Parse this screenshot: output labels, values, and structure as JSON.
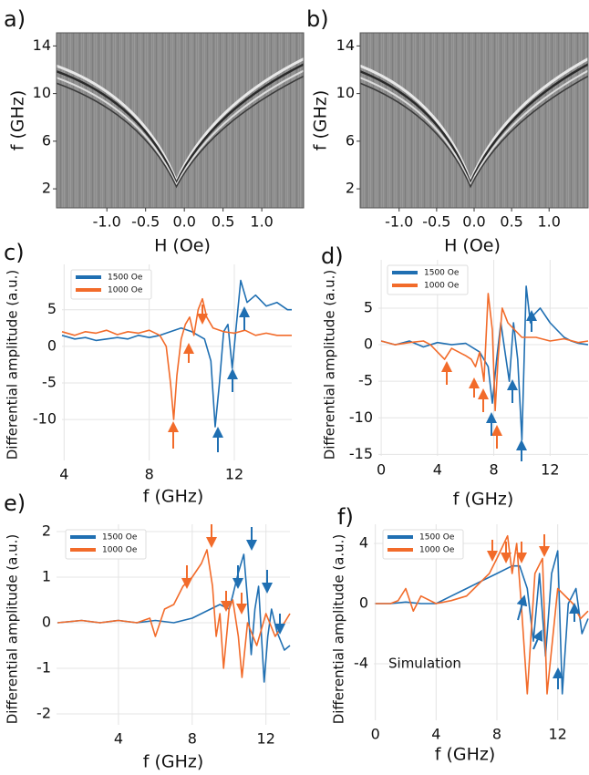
{
  "chart_data": [
    {
      "type": "image",
      "label": "a)",
      "xlabel": "H (Oe)",
      "ylabel": "f (GHz)",
      "xlim": [
        -1.65,
        1.54
      ],
      "ylim": [
        0.4,
        15.1
      ],
      "xticks": [
        {
          "value": -1,
          "label": "-1.0"
        },
        -0.5,
        {
          "value": 0,
          "label": "0.0"
        },
        0.5,
        {
          "value": 1,
          "label": "1.0"
        }
      ],
      "yticks": [
        2,
        6,
        10,
        14
      ]
    },
    {
      "type": "image",
      "label": "b)",
      "xlabel": "H (Oe)",
      "ylabel": "f (GHz)",
      "xlim": [
        -1.52,
        1.52
      ],
      "ylim": [
        0.4,
        15.1
      ],
      "xticks": [
        {
          "value": -1,
          "label": "-1.0"
        },
        -0.5,
        {
          "value": 0,
          "label": "0.0"
        },
        0.5,
        {
          "value": 1,
          "label": "1.0"
        }
      ],
      "yticks": [
        2,
        6,
        10,
        14
      ]
    },
    {
      "type": "line",
      "label": "c)",
      "xlabel": "f (GHz)",
      "ylabel": "Differential amplitude (a.u.)",
      "xlim": [
        3.9,
        14.7
      ],
      "ylim": [
        -15.6,
        11.2
      ],
      "xticks": [
        4,
        8,
        12
      ],
      "yticks": [
        5,
        0,
        -5,
        -10
      ],
      "grid": true,
      "legend": "upper-left",
      "series": [
        {
          "name": "1500 Oe",
          "color": "#1f6fb2",
          "x": [
            3.9,
            4.5,
            5,
            5.5,
            6,
            6.5,
            7,
            7.5,
            8,
            8.5,
            9,
            9.5,
            10,
            10.3,
            10.6,
            10.9,
            11.1,
            11.3,
            11.5,
            11.7,
            11.9,
            12.1,
            12.3,
            12.6,
            13,
            13.5,
            14,
            14.5,
            14.7
          ],
          "values": [
            1.5,
            1,
            1.2,
            0.8,
            1,
            1.2,
            1,
            1.5,
            1.2,
            1.5,
            2,
            2.5,
            2,
            1.5,
            1,
            -2,
            -11,
            -5,
            2,
            3,
            -3,
            3,
            9,
            6,
            7,
            5.5,
            6,
            5,
            5
          ]
        },
        {
          "name": "1000 Oe",
          "color": "#f26b2a",
          "x": [
            3.9,
            4.5,
            5,
            5.5,
            6,
            6.5,
            7,
            7.5,
            8,
            8.5,
            8.8,
            9,
            9.15,
            9.3,
            9.5,
            9.7,
            9.9,
            10.1,
            10.3,
            10.5,
            10.7,
            11,
            11.5,
            12,
            12.5,
            13,
            13.5,
            14,
            14.7
          ],
          "values": [
            2,
            1.5,
            2,
            1.8,
            2.2,
            1.6,
            2,
            1.8,
            2.2,
            1.5,
            0,
            -5,
            -10,
            -4,
            1,
            3,
            4,
            1.5,
            5,
            6.5,
            4,
            2.5,
            2,
            1.8,
            2.2,
            1.5,
            1.8,
            1.5,
            1.5
          ]
        }
      ]
    },
    {
      "type": "line",
      "label": "d)",
      "xlabel": "f (GHz)",
      "ylabel": "Differential amplitude (a.u.)",
      "xlim": [
        -0.2,
        14.7
      ],
      "ylim": [
        -15.2,
        11.6
      ],
      "xticks": [
        0,
        4,
        8,
        12
      ],
      "yticks": [
        5,
        0,
        -5,
        -10,
        -15
      ],
      "grid": true,
      "legend": "upper-left",
      "series": [
        {
          "name": "1500 Oe",
          "color": "#1f6fb2",
          "x": [
            0,
            1,
            2,
            3,
            4,
            5,
            6,
            7,
            7.6,
            7.9,
            8.2,
            8.5,
            8.8,
            9.1,
            9.4,
            9.7,
            10,
            10.3,
            10.6,
            10.8,
            11.3,
            12,
            12.5,
            13,
            13.5,
            14,
            14.7
          ],
          "values": [
            0.5,
            0,
            0.5,
            -0.3,
            0.3,
            0,
            0.2,
            -1,
            -3,
            -8,
            -2,
            3,
            -1,
            -5,
            3,
            -2,
            -13,
            8,
            3,
            4,
            5,
            3,
            2,
            1,
            0.5,
            0.2,
            0
          ]
        },
        {
          "name": "1000 Oe",
          "color": "#f26b2a",
          "x": [
            0,
            1,
            2,
            3,
            3.5,
            4,
            4.5,
            5,
            5.5,
            6,
            6.4,
            6.7,
            7,
            7.3,
            7.6,
            7.9,
            8.1,
            8.3,
            8.6,
            9,
            9.5,
            10,
            11,
            12,
            13,
            14,
            14.7
          ],
          "values": [
            0.5,
            0,
            0.3,
            0.5,
            0,
            -1,
            -2,
            -0.5,
            -1,
            -1.5,
            -2,
            -3,
            -1,
            -5,
            7,
            2,
            -9,
            -2,
            5,
            3,
            2,
            1,
            1,
            0.5,
            0.8,
            0.3,
            0.5
          ]
        }
      ]
    },
    {
      "type": "line",
      "label": "e)",
      "xlabel": "f (GHz)",
      "ylabel": "Differential amplitude (a.u.)",
      "xlim": [
        0.64,
        13.3
      ],
      "ylim": [
        -2.24,
        2.16
      ],
      "xticks": [
        4,
        8,
        12
      ],
      "yticks": [
        2,
        1,
        0,
        -1,
        -2
      ],
      "grid": true,
      "legend": "upper-left",
      "series": [
        {
          "name": "1500 Oe",
          "color": "#1f6fb2",
          "x": [
            0.7,
            2,
            3,
            4,
            5,
            6,
            7,
            8,
            8.5,
            9,
            9.5,
            10,
            10.2,
            10.5,
            10.8,
            11,
            11.2,
            11.4,
            11.6,
            11.9,
            12.1,
            12.3,
            12.6,
            13,
            13.3
          ],
          "values": [
            0,
            0.05,
            0,
            0.05,
            0,
            0.05,
            0,
            0.1,
            0.2,
            0.3,
            0.4,
            0.3,
            0.6,
            1.1,
            1.5,
            0.5,
            -0.7,
            0.3,
            0.8,
            -1.3,
            -0.3,
            0.3,
            -0.2,
            -0.6,
            -0.5
          ]
        },
        {
          "name": "1000 Oe",
          "color": "#f26b2a",
          "x": [
            0.7,
            2,
            3,
            4,
            5,
            5.7,
            6,
            6.5,
            7,
            7.5,
            8,
            8.5,
            8.8,
            9.1,
            9.3,
            9.5,
            9.7,
            10,
            10.2,
            10.5,
            10.7,
            11,
            11.5,
            12,
            12.5,
            13,
            13.3
          ],
          "values": [
            0,
            0.05,
            0,
            0.05,
            0,
            0.1,
            -0.3,
            0.3,
            0.4,
            0.8,
            1,
            1.3,
            1.6,
            0.8,
            -0.3,
            0.2,
            -1,
            0.3,
            0.5,
            -0.3,
            -1.2,
            0,
            -0.5,
            0.2,
            -0.3,
            0,
            0.2
          ]
        }
      ]
    },
    {
      "type": "line",
      "label": "f)",
      "xlabel": "f (GHz)",
      "ylabel": "Differential amplitude (a.u.)",
      "annotation": "Simulation",
      "xlim": [
        -0.1,
        14
      ],
      "ylim": [
        -7.76,
        5.27
      ],
      "xticks": [
        0,
        4,
        8,
        12
      ],
      "yticks": [
        4,
        0,
        -4
      ],
      "grid": true,
      "legend": "upper-left",
      "series": [
        {
          "name": "1500 Oe",
          "color": "#1f6fb2",
          "x": [
            0,
            1,
            2,
            3,
            4,
            5,
            6,
            7,
            8,
            9,
            9.5,
            10,
            10.4,
            10.8,
            11.2,
            11.6,
            12,
            12.3,
            12.7,
            13.2,
            13.6,
            14
          ],
          "values": [
            0,
            0,
            0.1,
            0,
            0,
            0.5,
            1,
            1.5,
            2,
            2.5,
            2.5,
            1,
            -2.5,
            2,
            -3.5,
            2,
            3.5,
            -6,
            0,
            1,
            -2,
            -1
          ]
        },
        {
          "name": "1000 Oe",
          "color": "#f26b2a",
          "x": [
            0,
            1,
            1.5,
            2,
            2.5,
            3,
            4,
            5,
            6,
            6.5,
            7,
            7.5,
            8,
            8.7,
            9,
            9.3,
            9.6,
            10,
            10.5,
            11,
            11.3,
            12,
            13,
            13.5,
            14
          ],
          "values": [
            0,
            0,
            0.2,
            1,
            -0.5,
            0.5,
            0,
            0.2,
            0.5,
            1,
            1.5,
            2,
            3,
            4.5,
            2,
            4,
            0,
            -6,
            2,
            3,
            -6,
            1,
            0,
            -1,
            -0.5
          ]
        }
      ]
    }
  ]
}
